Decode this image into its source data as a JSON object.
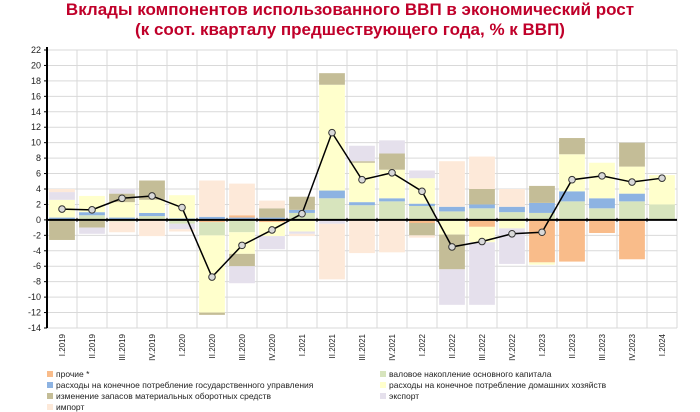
{
  "chart_data": {
    "type": "bar",
    "title": "Вклады компонентов использованного ВВП в экономический рост",
    "subtitle": "(к соот. кварталу предшествующего года, % к ВВП)",
    "xlabel": "",
    "ylabel": "",
    "ylim": [
      -14,
      22
    ],
    "yticks": [
      "22",
      "20",
      "18",
      "16",
      "14",
      "12",
      "10",
      "8",
      "6",
      "4",
      "2",
      "0",
      "-2",
      "-4",
      "-6",
      "-8",
      "-10",
      "-12",
      "-14"
    ],
    "grid": true,
    "categories": [
      "I.2019",
      "II.2019",
      "III.2019",
      "IV.2019",
      "I.2020",
      "II.2020",
      "III.2020",
      "IV.2020",
      "I.2021",
      "II.2021",
      "III.2021",
      "IV.2021",
      "I.2022",
      "II.2022",
      "III.2022",
      "IV.2022",
      "I.2023",
      "II.2023",
      "III.2023",
      "IV.2023",
      "I.2024"
    ],
    "series": [
      {
        "key": "gfcf",
        "name": "валовое накопление основного капитала",
        "color": "#d7e4bd",
        "values": [
          0,
          0.6,
          -0.2,
          0.5,
          -0.5,
          -1.7,
          -1.6,
          0,
          0.9,
          2.8,
          1.9,
          2.4,
          1.8,
          1.1,
          1.5,
          1.0,
          0.9,
          2.4,
          1.5,
          2.4,
          2.0
        ]
      },
      {
        "key": "gov",
        "name": "расходы на конечное потребление государственного управления",
        "color": "#8db3e2",
        "values": [
          0.3,
          0.4,
          0.3,
          0.4,
          0.2,
          0.4,
          0.3,
          0.3,
          0.4,
          1.0,
          0.4,
          0.4,
          0.3,
          0.6,
          0.5,
          0.7,
          1.3,
          1.3,
          1.3,
          1.0,
          0
        ]
      },
      {
        "key": "other",
        "name": "прочие *",
        "color": "#f9bc8a",
        "values": [
          0,
          0,
          0,
          0,
          0,
          -0.3,
          0.3,
          -0.3,
          0,
          0,
          0,
          0,
          -0.4,
          0,
          -0.9,
          0,
          -5.5,
          -5.4,
          -1.7,
          -5.1,
          0
        ]
      },
      {
        "key": "hh",
        "name": "расходы на конечное потребление домашних хозяйств",
        "color": "#ffffcc",
        "values": [
          2.3,
          2.1,
          2.0,
          1.7,
          3.0,
          -10.0,
          -2.8,
          -1.8,
          -1.5,
          13.7,
          5.1,
          3.7,
          3.3,
          -1.9,
          -2.0,
          -1.1,
          -0.3,
          4.8,
          4.6,
          3.5,
          3.8
        ]
      },
      {
        "key": "inv",
        "name": "изменение запасов материальных оборотных средств",
        "color": "#c4bd97",
        "values": [
          -2.6,
          -1.0,
          1.1,
          2.5,
          0,
          -0.3,
          -1.6,
          1.2,
          1.7,
          1.5,
          0.2,
          2.1,
          -1.6,
          -4.5,
          2.0,
          0,
          2.2,
          2.1,
          0,
          3.1,
          0
        ]
      },
      {
        "key": "exp",
        "name": "экспорт",
        "color": "#e5e0ec",
        "values": [
          1.0,
          -0.8,
          0.6,
          0,
          -0.7,
          0,
          -2.2,
          -1.7,
          -0.3,
          -0.5,
          2.0,
          1.7,
          1.0,
          -4.6,
          -8.1,
          -4.6,
          0,
          0,
          0,
          0,
          0
        ]
      },
      {
        "key": "imp",
        "name": "импорт",
        "color": "#fde9d9",
        "values": [
          0.4,
          0,
          -1.4,
          -2.1,
          -0.3,
          4.7,
          4.1,
          1.0,
          -0.3,
          -7.2,
          -4.3,
          -4.2,
          -0.3,
          5.9,
          4.2,
          2.3,
          0,
          0,
          0,
          0,
          0
        ]
      }
    ],
    "line": {
      "name": "ВВП",
      "color": "#000000",
      "values": [
        1.4,
        1.3,
        2.8,
        3.1,
        1.6,
        -7.4,
        -3.3,
        -1.3,
        0.8,
        11.3,
        5.2,
        6.1,
        3.7,
        -3.5,
        -2.8,
        -1.8,
        -1.6,
        5.2,
        5.7,
        4.9,
        5.4
      ]
    },
    "legend": {
      "placement": "bottom",
      "items": [
        "прочие *",
        "валовое накопление основного капитала",
        "расходы на конечное потребление государственного управления",
        "расходы на конечное потребление домашних хозяйств",
        "изменение запасов материальных оборотных средств",
        "экспорт",
        "импорт"
      ],
      "colors": [
        "#f9bc8a",
        "#d7e4bd",
        "#8db3e2",
        "#ffffcc",
        "#c4bd97",
        "#e5e0ec",
        "#fde9d9"
      ]
    }
  }
}
